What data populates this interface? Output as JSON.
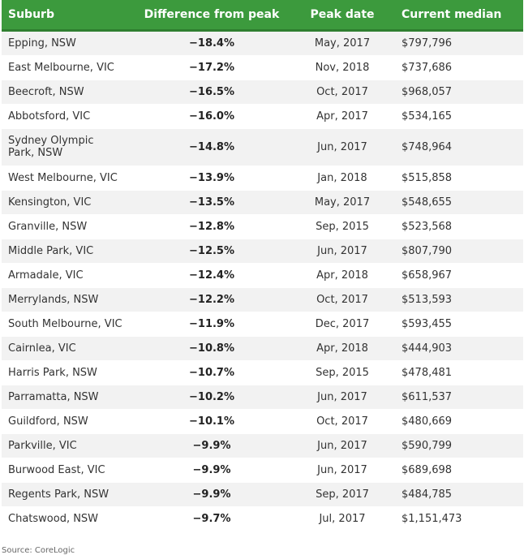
{
  "chart_data": {
    "type": "table",
    "columns": [
      "Suburb",
      "Difference from peak",
      "Peak date",
      "Current median"
    ],
    "rows": [
      [
        "Epping, NSW",
        "−18.4%",
        "May, 2017",
        "$797,796"
      ],
      [
        "East Melbourne, VIC",
        "−17.2%",
        "Nov, 2018",
        "$737,686"
      ],
      [
        "Beecroft, NSW",
        "−16.5%",
        "Oct, 2017",
        "$968,057"
      ],
      [
        "Abbotsford, VIC",
        "−16.0%",
        "Apr, 2017",
        "$534,165"
      ],
      [
        "Sydney Olympic Park, NSW",
        "−14.8%",
        "Jun, 2017",
        "$748,964"
      ],
      [
        "West Melbourne, VIC",
        "−13.9%",
        "Jan, 2018",
        "$515,858"
      ],
      [
        "Kensington, VIC",
        "−13.5%",
        "May, 2017",
        "$548,655"
      ],
      [
        "Granville, NSW",
        "−12.8%",
        "Sep, 2015",
        "$523,568"
      ],
      [
        "Middle Park, VIC",
        "−12.5%",
        "Jun, 2017",
        "$807,790"
      ],
      [
        "Armadale, VIC",
        "−12.4%",
        "Apr, 2018",
        "$658,967"
      ],
      [
        "Merrylands, NSW",
        "−12.2%",
        "Oct, 2017",
        "$513,593"
      ],
      [
        "South Melbourne, VIC",
        "−11.9%",
        "Dec, 2017",
        "$593,455"
      ],
      [
        "Cairnlea, VIC",
        "−10.8%",
        "Apr, 2018",
        "$444,903"
      ],
      [
        "Harris Park, NSW",
        "−10.7%",
        "Sep, 2015",
        "$478,481"
      ],
      [
        "Parramatta, NSW",
        "−10.2%",
        "Jun, 2017",
        "$611,537"
      ],
      [
        "Guildford, NSW",
        "−10.1%",
        "Oct, 2017",
        "$480,669"
      ],
      [
        "Parkville, VIC",
        "−9.9%",
        "Jun, 2017",
        "$590,799"
      ],
      [
        "Burwood East, VIC",
        "−9.9%",
        "Jun, 2017",
        "$689,698"
      ],
      [
        "Regents Park, NSW",
        "−9.9%",
        "Sep, 2017",
        "$484,785"
      ],
      [
        "Chatswood, NSW",
        "−9.7%",
        "Jul, 2017",
        "$1,151,473"
      ]
    ]
  },
  "source": "Source: CoreLogic",
  "colors": {
    "header_bg": "#3c9a3d",
    "row_alt": "#f2f2f2"
  }
}
